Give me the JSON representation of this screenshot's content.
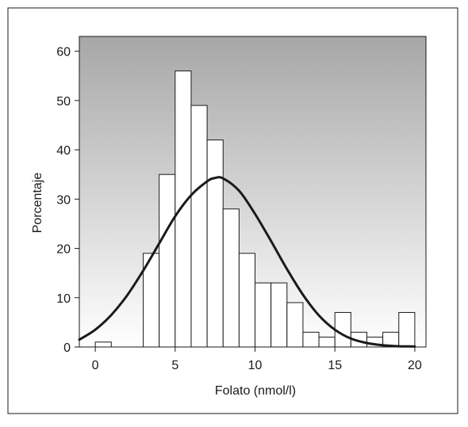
{
  "chart_data": {
    "type": "bar",
    "xlabel": "Folato (nmol/l)",
    "ylabel": "Porcentaje",
    "xlim": [
      -1,
      20.7
    ],
    "ylim": [
      0,
      63
    ],
    "x_ticks": [
      0,
      5,
      10,
      15,
      20
    ],
    "y_ticks": [
      0,
      10,
      20,
      30,
      40,
      50,
      60
    ],
    "bin_width": 1,
    "bins": [
      {
        "x0": 0,
        "x1": 1,
        "value": 1
      },
      {
        "x0": 3,
        "x1": 4,
        "value": 19
      },
      {
        "x0": 4,
        "x1": 5,
        "value": 35
      },
      {
        "x0": 5,
        "x1": 6,
        "value": 56
      },
      {
        "x0": 6,
        "x1": 7,
        "value": 49
      },
      {
        "x0": 7,
        "x1": 8,
        "value": 42
      },
      {
        "x0": 8,
        "x1": 9,
        "value": 28
      },
      {
        "x0": 9,
        "x1": 10,
        "value": 19
      },
      {
        "x0": 10,
        "x1": 11,
        "value": 13
      },
      {
        "x0": 11,
        "x1": 12,
        "value": 13
      },
      {
        "x0": 12,
        "x1": 13,
        "value": 9
      },
      {
        "x0": 13,
        "x1": 14,
        "value": 3
      },
      {
        "x0": 14,
        "x1": 15,
        "value": 2
      },
      {
        "x0": 15,
        "x1": 16,
        "value": 7
      },
      {
        "x0": 16,
        "x1": 17,
        "value": 3
      },
      {
        "x0": 17,
        "x1": 18,
        "value": 2
      },
      {
        "x0": 18,
        "x1": 19,
        "value": 3
      },
      {
        "x0": 19,
        "x1": 20,
        "value": 7
      }
    ],
    "curve": {
      "type": "normal",
      "points": [
        [
          -1,
          1.5
        ],
        [
          0,
          3.5
        ],
        [
          1,
          6.5
        ],
        [
          2,
          10.5
        ],
        [
          3,
          15.5
        ],
        [
          4,
          21
        ],
        [
          5,
          26.5
        ],
        [
          6,
          30.8
        ],
        [
          7,
          33.6
        ],
        [
          7.5,
          34.3
        ],
        [
          8,
          34.2
        ],
        [
          9,
          31.7
        ],
        [
          10,
          27
        ],
        [
          11,
          21.5
        ],
        [
          12,
          15.8
        ],
        [
          13,
          10.6
        ],
        [
          14,
          6.4
        ],
        [
          15,
          3.5
        ],
        [
          16,
          1.7
        ],
        [
          17,
          0.8
        ],
        [
          18,
          0.35
        ],
        [
          19,
          0.15
        ],
        [
          20,
          0.1
        ]
      ]
    },
    "grid": false,
    "legend": "none",
    "colors": {
      "bar_fill": "#ffffff",
      "bar_stroke": "#1a1a1a",
      "curve": "#1a1a1a",
      "plot_bg_top": "#a7a7a7",
      "plot_bg_bottom": "#ffffff"
    }
  }
}
